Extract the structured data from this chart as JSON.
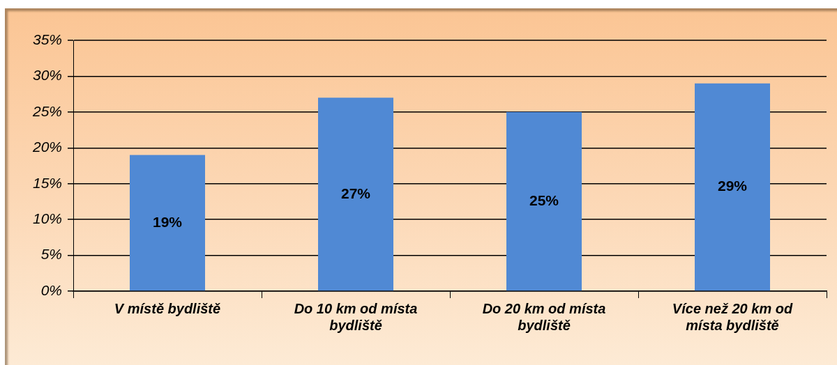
{
  "chart_data": {
    "type": "bar",
    "categories": [
      "V místě bydliště",
      "Do 10 km od místa bydliště",
      "Do 20 km od místa bydliště",
      "Více než 20 km od místa bydliště"
    ],
    "values": [
      19,
      27,
      25,
      29
    ],
    "color": "#5089d4",
    "value_labels": [
      "19%",
      "27%",
      "25%",
      "29%"
    ],
    "ylim": [
      0,
      35
    ],
    "yticks": [
      {
        "value": 0,
        "label": "0%"
      },
      {
        "value": 5,
        "label": "5%"
      },
      {
        "value": 10,
        "label": "10%"
      },
      {
        "value": 15,
        "label": "15%"
      },
      {
        "value": 20,
        "label": "20%"
      },
      {
        "value": 25,
        "label": "25%"
      },
      {
        "value": 30,
        "label": "30%"
      },
      {
        "value": 35,
        "label": "35%"
      }
    ],
    "grid": "y",
    "legend": false
  }
}
